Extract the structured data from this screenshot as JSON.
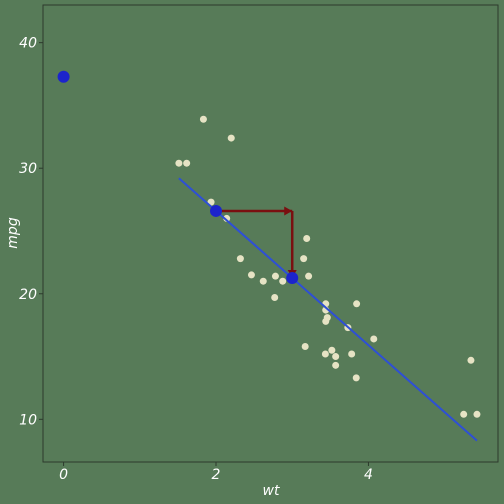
{
  "chart_data": {
    "type": "scatter",
    "title": "",
    "xlabel": "wt",
    "ylabel": "mpg",
    "xlim": [
      -0.27,
      5.7
    ],
    "ylim": [
      6.6,
      43.0
    ],
    "x_ticks": [
      0,
      2,
      4
    ],
    "x_tick_labels": [
      "0",
      "2",
      "4"
    ],
    "y_ticks": [
      10,
      20,
      30,
      40
    ],
    "y_tick_labels": [
      "10",
      "20",
      "30",
      "40"
    ],
    "grid": false,
    "colors": {
      "background": "#577b58",
      "points": "#e6e3c4",
      "fit_line": "#2e4fd6",
      "highlight_points": "#1c24cc",
      "arrow": "#7a0f10",
      "axis": "#2c3a2c",
      "text": "#ffffff"
    },
    "points": [
      {
        "x": 1.835,
        "y": 33.9
      },
      {
        "x": 2.2,
        "y": 32.4
      },
      {
        "x": 1.513,
        "y": 30.4
      },
      {
        "x": 1.615,
        "y": 30.4
      },
      {
        "x": 1.935,
        "y": 27.3
      },
      {
        "x": 2.14,
        "y": 26.0
      },
      {
        "x": 2.32,
        "y": 22.8
      },
      {
        "x": 2.465,
        "y": 21.5
      },
      {
        "x": 2.62,
        "y": 21.0
      },
      {
        "x": 2.77,
        "y": 19.7
      },
      {
        "x": 2.78,
        "y": 21.4
      },
      {
        "x": 2.875,
        "y": 21.0
      },
      {
        "x": 3.15,
        "y": 22.8
      },
      {
        "x": 3.17,
        "y": 15.8
      },
      {
        "x": 3.19,
        "y": 24.4
      },
      {
        "x": 3.215,
        "y": 21.4
      },
      {
        "x": 3.435,
        "y": 15.2
      },
      {
        "x": 3.44,
        "y": 18.7
      },
      {
        "x": 3.44,
        "y": 19.2
      },
      {
        "x": 3.44,
        "y": 17.8
      },
      {
        "x": 3.46,
        "y": 18.1
      },
      {
        "x": 3.52,
        "y": 15.5
      },
      {
        "x": 3.57,
        "y": 14.3
      },
      {
        "x": 3.57,
        "y": 15.0
      },
      {
        "x": 3.73,
        "y": 17.3
      },
      {
        "x": 3.78,
        "y": 15.2
      },
      {
        "x": 3.84,
        "y": 13.3
      },
      {
        "x": 3.845,
        "y": 19.2
      },
      {
        "x": 4.07,
        "y": 16.4
      },
      {
        "x": 5.25,
        "y": 10.4
      },
      {
        "x": 5.345,
        "y": 14.7
      },
      {
        "x": 5.424,
        "y": 10.4
      }
    ],
    "fit_line": {
      "intercept": 37.285,
      "slope": -5.344,
      "x_range": [
        1.513,
        5.424
      ]
    },
    "highlight_points": [
      {
        "x": 0,
        "y": 37.285
      },
      {
        "x": 2,
        "y": 26.597
      },
      {
        "x": 3,
        "y": 21.253
      }
    ],
    "arrow": {
      "from": [
        2,
        26.597
      ],
      "corner": [
        3,
        26.597
      ],
      "to": [
        3,
        21.253
      ]
    }
  }
}
